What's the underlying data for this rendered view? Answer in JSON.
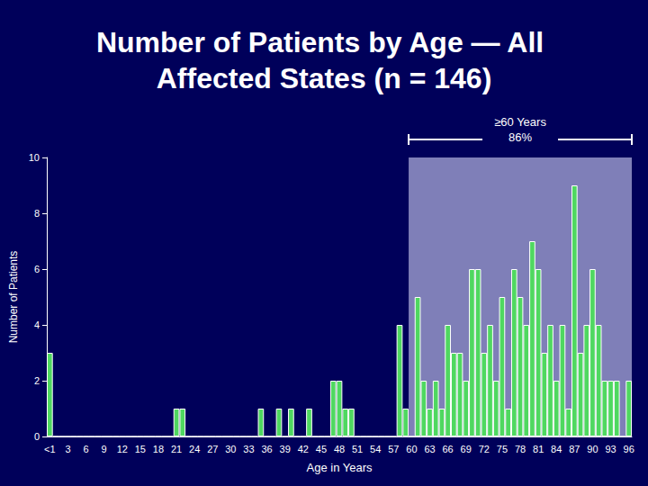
{
  "chart_data": {
    "type": "bar",
    "title": "Number of Patients by Age — All Affected States (n = 146)",
    "x_label": "Age in Years",
    "y_label": "Number of Patients",
    "categories": [
      "<1",
      null,
      null,
      "3",
      null,
      null,
      "6",
      null,
      null,
      "9",
      null,
      null,
      "12",
      null,
      null,
      "15",
      null,
      null,
      "18",
      null,
      null,
      "21",
      null,
      null,
      "24",
      null,
      null,
      "27",
      null,
      null,
      "30",
      null,
      null,
      "33",
      null,
      null,
      "36",
      null,
      null,
      "39",
      null,
      null,
      "42",
      null,
      null,
      "45",
      null,
      null,
      "48",
      null,
      null,
      "51",
      null,
      null,
      "54",
      null,
      null,
      "57",
      null,
      null,
      "60",
      null,
      null,
      "63",
      null,
      null,
      "66",
      null,
      null,
      "69",
      null,
      null,
      "72",
      null,
      null,
      "75",
      null,
      null,
      "78",
      null,
      null,
      "81",
      null,
      null,
      "84",
      null,
      null,
      "87",
      null,
      null,
      "90",
      null,
      null,
      "93",
      null,
      null,
      "96"
    ],
    "values": [
      3,
      0,
      0,
      0,
      0,
      0,
      0,
      0,
      0,
      0,
      0,
      0,
      0,
      0,
      0,
      0,
      0,
      0,
      0,
      0,
      0,
      1,
      1,
      0,
      0,
      0,
      0,
      0,
      0,
      0,
      0,
      0,
      0,
      0,
      0,
      1,
      0,
      0,
      1,
      0,
      1,
      0,
      0,
      1,
      0,
      0,
      0,
      2,
      2,
      1,
      1,
      0,
      0,
      0,
      0,
      0,
      0,
      0,
      4,
      1,
      0,
      5,
      2,
      1,
      2,
      1,
      4,
      3,
      3,
      2,
      6,
      6,
      3,
      4,
      2,
      5,
      1,
      6,
      5,
      4,
      7,
      6,
      3,
      4,
      2,
      4,
      1,
      9,
      3,
      4,
      6,
      4,
      2,
      2,
      2,
      0,
      2
    ],
    "color": "#4fd860",
    "ylim": [
      0,
      10
    ],
    "yticks": [
      0,
      2,
      4,
      6,
      8,
      10
    ],
    "grid": false,
    "annotation": {
      "text": [
        "≥60 Years",
        "86%"
      ],
      "from": 60
    }
  }
}
